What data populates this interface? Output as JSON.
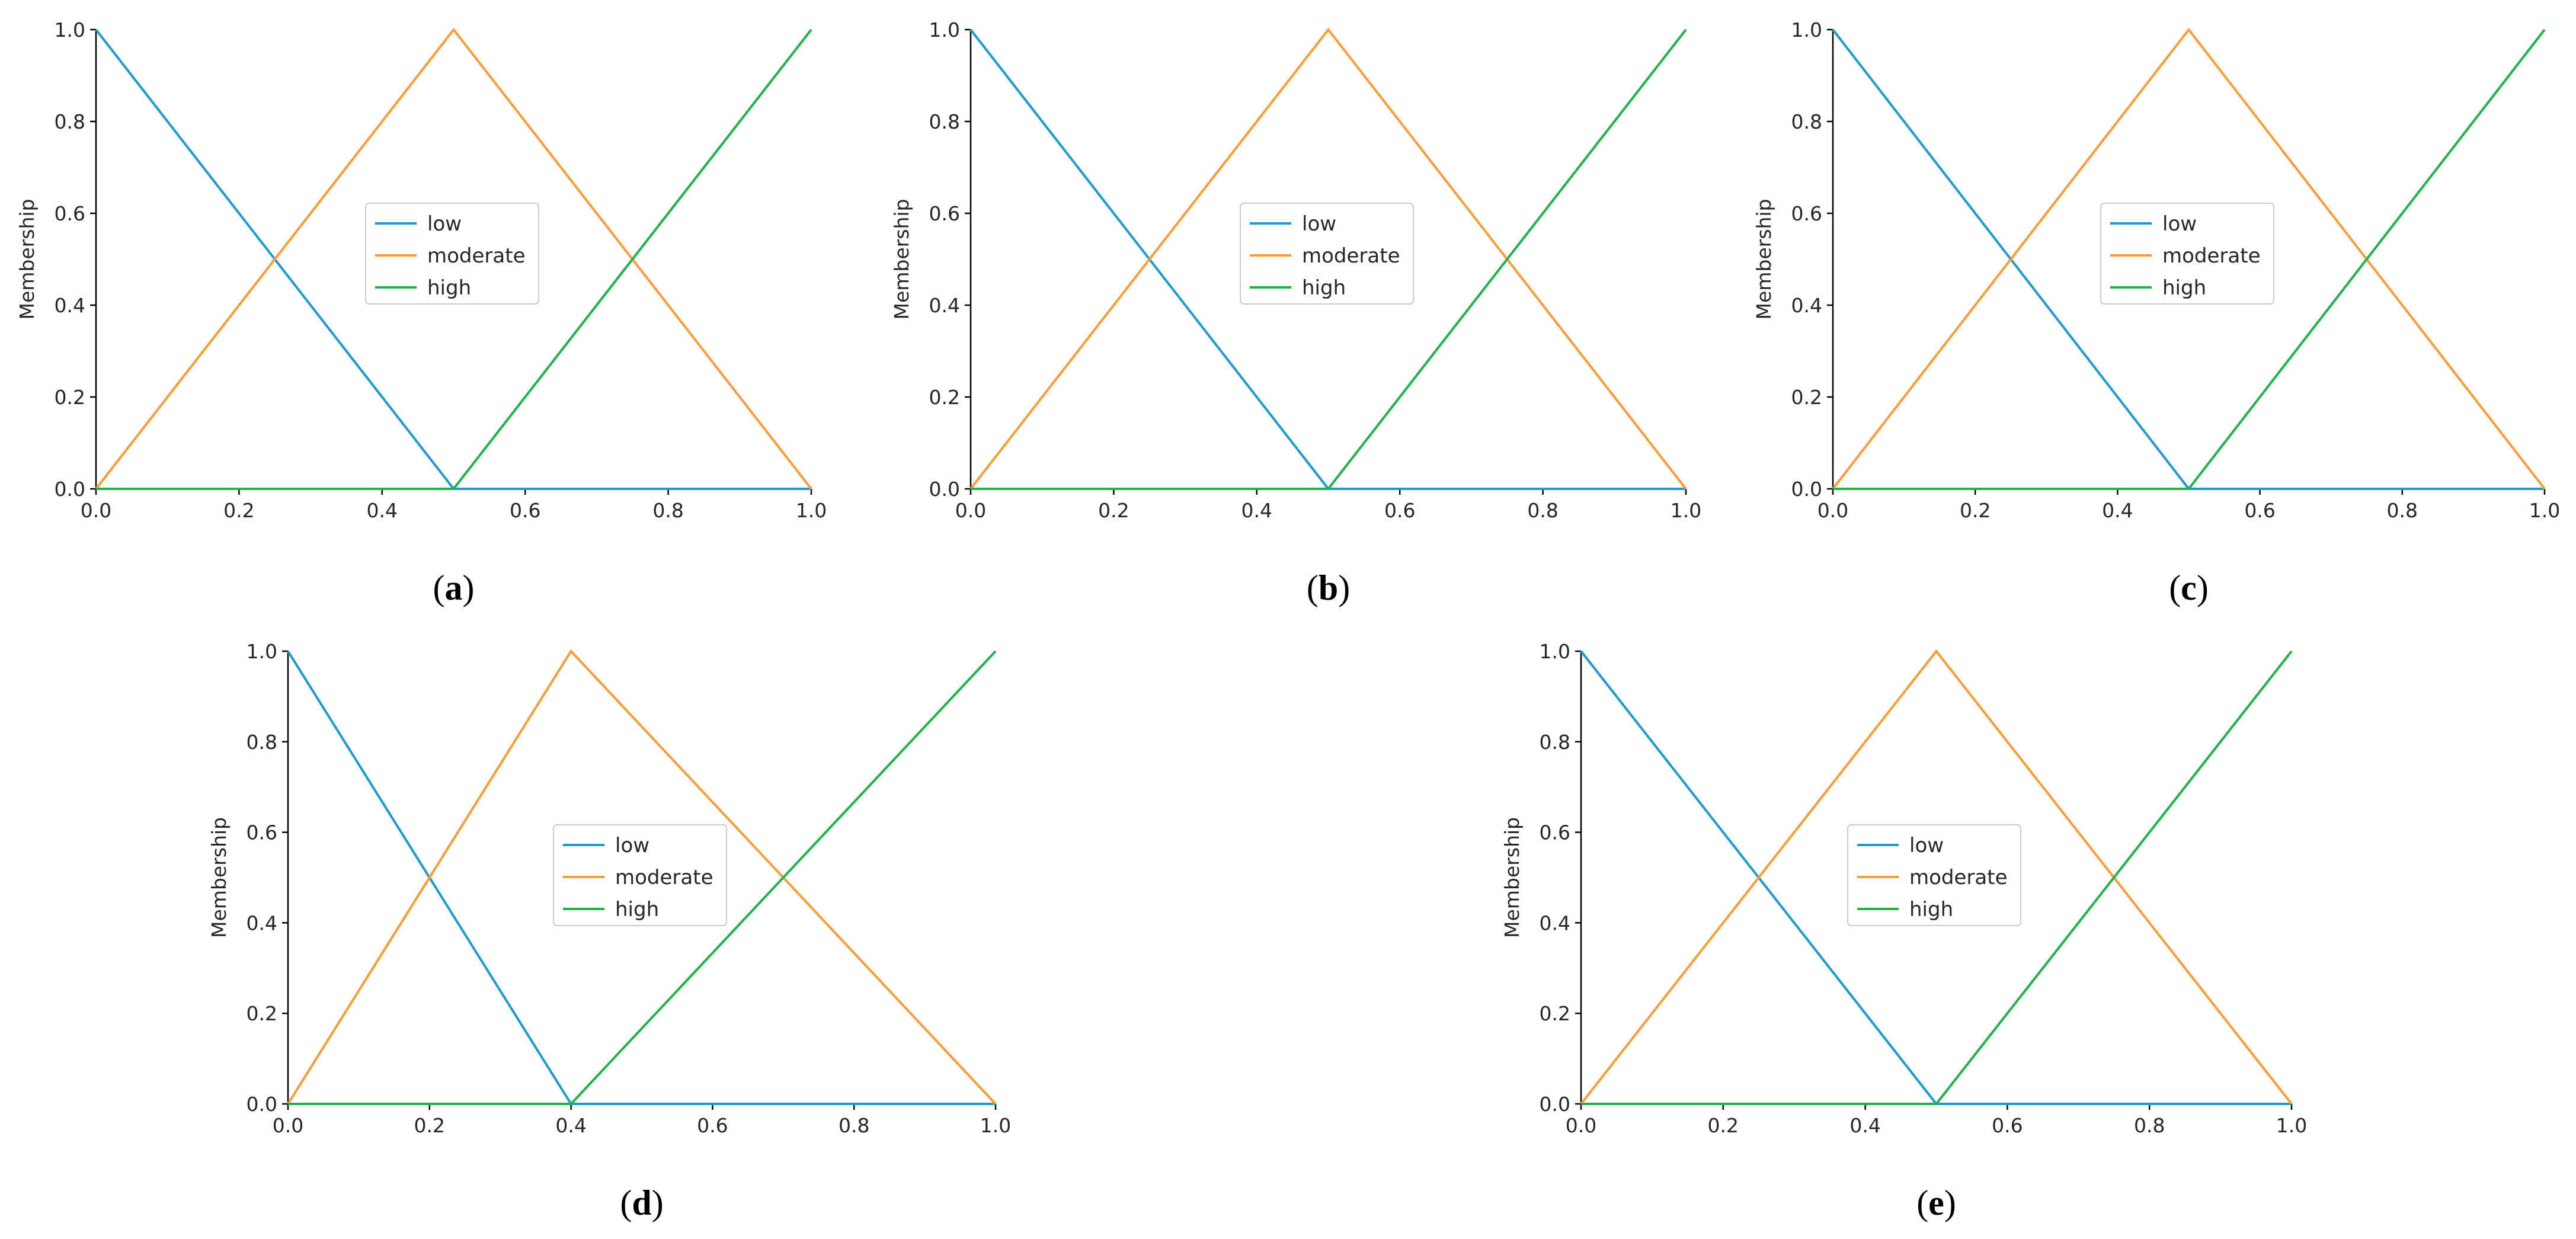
{
  "colors": {
    "low": "#1f9bd1",
    "moderate": "#ff9d3a",
    "high": "#22b24c"
  },
  "chart_data": [
    {
      "type": "line",
      "caption": "a",
      "ylabel": "Membership",
      "xlim": [
        0,
        1
      ],
      "ylim": [
        0,
        1
      ],
      "xticks": [
        "0.0",
        "0.2",
        "0.4",
        "0.6",
        "0.8",
        "1.0"
      ],
      "yticks": [
        "0.0",
        "0.2",
        "0.4",
        "0.6",
        "0.8",
        "1.0"
      ],
      "legend": "center",
      "series": [
        {
          "name": "low",
          "x": [
            0,
            0.5,
            1
          ],
          "y": [
            1,
            0,
            0
          ]
        },
        {
          "name": "moderate",
          "x": [
            0,
            0.5,
            1
          ],
          "y": [
            0,
            1,
            0
          ]
        },
        {
          "name": "high",
          "x": [
            0,
            0.5,
            1
          ],
          "y": [
            0,
            0,
            1
          ]
        }
      ]
    },
    {
      "type": "line",
      "caption": "b",
      "ylabel": "Membership",
      "xlim": [
        0,
        1
      ],
      "ylim": [
        0,
        1
      ],
      "xticks": [
        "0.0",
        "0.2",
        "0.4",
        "0.6",
        "0.8",
        "1.0"
      ],
      "yticks": [
        "0.0",
        "0.2",
        "0.4",
        "0.6",
        "0.8",
        "1.0"
      ],
      "legend": "center",
      "series": [
        {
          "name": "low",
          "x": [
            0,
            0.5,
            1
          ],
          "y": [
            1,
            0,
            0
          ]
        },
        {
          "name": "moderate",
          "x": [
            0,
            0.5,
            1
          ],
          "y": [
            0,
            1,
            0
          ]
        },
        {
          "name": "high",
          "x": [
            0,
            0.5,
            1
          ],
          "y": [
            0,
            0,
            1
          ]
        }
      ]
    },
    {
      "type": "line",
      "caption": "c",
      "ylabel": "Membership",
      "xlim": [
        0,
        1
      ],
      "ylim": [
        0,
        1
      ],
      "xticks": [
        "0.0",
        "0.2",
        "0.4",
        "0.6",
        "0.8",
        "1.0"
      ],
      "yticks": [
        "0.0",
        "0.2",
        "0.4",
        "0.6",
        "0.8",
        "1.0"
      ],
      "legend": "center",
      "series": [
        {
          "name": "low",
          "x": [
            0,
            0.5,
            1
          ],
          "y": [
            1,
            0,
            0
          ]
        },
        {
          "name": "moderate",
          "x": [
            0,
            0.5,
            1
          ],
          "y": [
            0,
            1,
            0
          ]
        },
        {
          "name": "high",
          "x": [
            0,
            0.5,
            1
          ],
          "y": [
            0,
            0,
            1
          ]
        }
      ]
    },
    {
      "type": "line",
      "caption": "d",
      "ylabel": "Membership",
      "xlim": [
        0,
        1
      ],
      "ylim": [
        0,
        1
      ],
      "xticks": [
        "0.0",
        "0.2",
        "0.4",
        "0.6",
        "0.8",
        "1.0"
      ],
      "yticks": [
        "0.0",
        "0.2",
        "0.4",
        "0.6",
        "0.8",
        "1.0"
      ],
      "legend": "center",
      "series": [
        {
          "name": "low",
          "x": [
            0,
            0.4,
            1
          ],
          "y": [
            1,
            0,
            0
          ]
        },
        {
          "name": "moderate",
          "x": [
            0,
            0.4,
            1
          ],
          "y": [
            0,
            1,
            0
          ]
        },
        {
          "name": "high",
          "x": [
            0,
            0.4,
            1
          ],
          "y": [
            0,
            0,
            1
          ]
        }
      ]
    },
    {
      "type": "line",
      "caption": "e",
      "ylabel": "Membership",
      "xlim": [
        0,
        1
      ],
      "ylim": [
        0,
        1
      ],
      "xticks": [
        "0.0",
        "0.2",
        "0.4",
        "0.6",
        "0.8",
        "1.0"
      ],
      "yticks": [
        "0.0",
        "0.2",
        "0.4",
        "0.6",
        "0.8",
        "1.0"
      ],
      "legend": "center",
      "series": [
        {
          "name": "low",
          "x": [
            0,
            0.5,
            1
          ],
          "y": [
            1,
            0,
            0
          ]
        },
        {
          "name": "moderate",
          "x": [
            0,
            0.5,
            1
          ],
          "y": [
            0,
            1,
            0
          ]
        },
        {
          "name": "high",
          "x": [
            0,
            0.5,
            1
          ],
          "y": [
            0,
            0,
            1
          ]
        }
      ]
    }
  ]
}
